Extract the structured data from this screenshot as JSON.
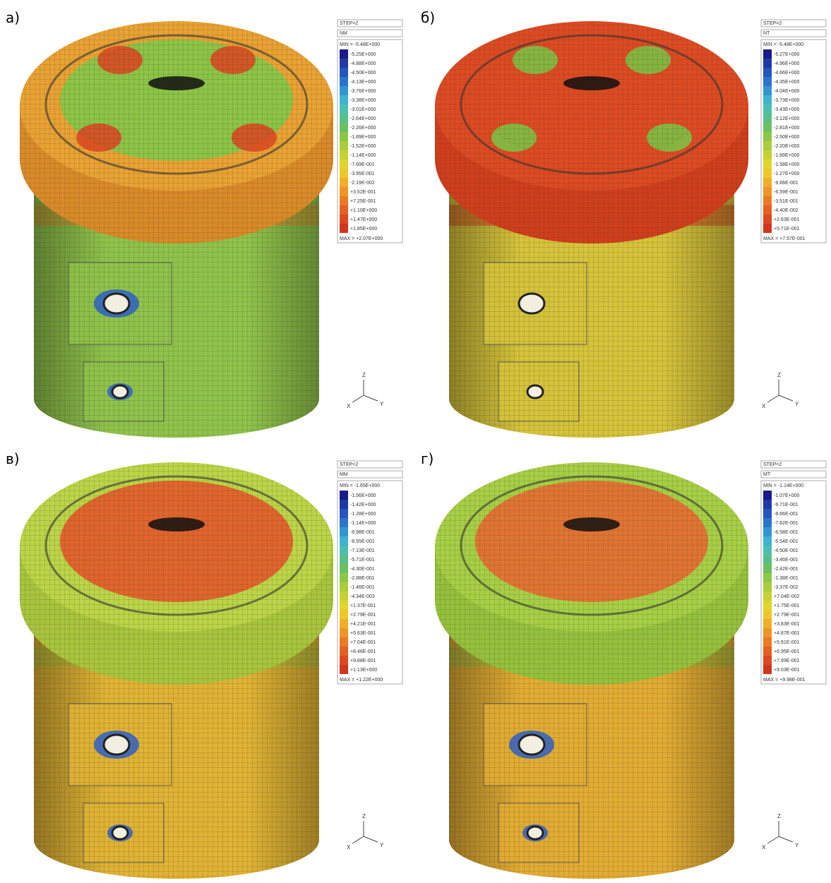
{
  "panels": [
    {
      "label": "а)",
      "step": "STEP=2",
      "component": "NM",
      "min": "MIN = -5.48E+000",
      "levels": [
        "-5.25E+000",
        "-4.88E+000",
        "-4.50E+000",
        "-4.13E+000",
        "-3.76E+000",
        "-3.38E+000",
        "-3.01E+000",
        "-2.64E+000",
        "-2.26E+000",
        "-1.89E+000",
        "-1.52E+000",
        "-1.14E+000",
        "-7.69E-001",
        "-3.95E-001",
        "-2.19E-002",
        "+3.52E-001",
        "+7.25E-001",
        "+1.10E+000",
        "+1.47E+000",
        "+1.85E+000"
      ],
      "max": "MAX = +2.07E+000",
      "axes": [
        "Z",
        "X",
        "Y"
      ]
    },
    {
      "label": "б)",
      "step": "STEP=2",
      "component": "NT",
      "min": "MIN = -5.48E+000",
      "levels": [
        "-5.27E+000",
        "-4.96E+000",
        "-4.66E+000",
        "-4.35E+000",
        "-4.04E+000",
        "-3.73E+000",
        "-3.43E+000",
        "-3.12E+000",
        "-2.81E+000",
        "-2.50E+000",
        "-2.20E+000",
        "-1.89E+000",
        "-1.58E+000",
        "-1.27E+000",
        "-9.66E-001",
        "-6.59E-001",
        "-3.51E-001",
        "-4.40E-002",
        "+2.63E-001",
        "+5.71E-001"
      ],
      "max": "MAX = +7.57E-001",
      "axes": [
        "Z",
        "X",
        "Y"
      ]
    },
    {
      "label": "в)",
      "step": "STEP=2",
      "component": "MM",
      "min": "MIN = -1.65E+000",
      "levels": [
        "-1.56E+000",
        "-1.42E+000",
        "-1.28E+000",
        "-1.14E+000",
        "-9.98E-001",
        "-8.55E-001",
        "-7.13E-001",
        "-5.71E-001",
        "-4.30E-001",
        "-2.88E-001",
        "-1.46E-001",
        "-4.34E-003",
        "+1.37E-001",
        "+2.79E-001",
        "+4.21E-001",
        "+5.63E-001",
        "+7.04E-001",
        "+8.46E-001",
        "+9.88E-001",
        "+1.13E+000"
      ],
      "max": "MAX = +1.22E+000",
      "axes": [
        "Z",
        "X",
        "Y"
      ]
    },
    {
      "label": "г)",
      "step": "STEP=2",
      "component": "MT",
      "min": "MIN = -1.14E+000",
      "levels": [
        "-1.07E+000",
        "-9.71E-001",
        "-8.66E-001",
        "-7.62E-001",
        "-6.58E-001",
        "-5.54E-001",
        "-4.50E-001",
        "-3.46E-001",
        "-2.42E-001",
        "-1.38E-001",
        "-3.37E-002",
        "+7.04E-002",
        "+1.75E-001",
        "+2.79E-001",
        "+3.83E-001",
        "+4.87E-001",
        "+5.91E-001",
        "+6.95E-001",
        "+7.99E-001",
        "+9.03E-001"
      ],
      "max": "MAX = +9.98E-001",
      "axes": [
        "Z",
        "X",
        "Y"
      ]
    }
  ]
}
